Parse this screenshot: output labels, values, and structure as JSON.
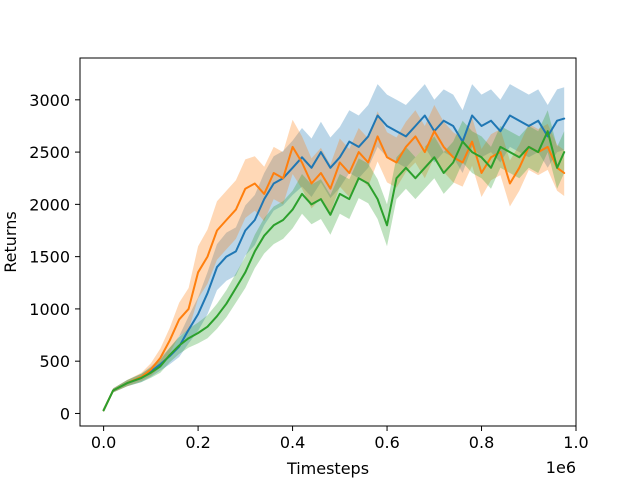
{
  "chart_data": {
    "type": "line",
    "title": "",
    "xlabel": "Timesteps",
    "ylabel": "Returns",
    "x_offset_label": "1e6",
    "xlim": [
      -0.05,
      1.0
    ],
    "ylim": [
      -120,
      3400
    ],
    "xticks": [
      0.0,
      0.2,
      0.4,
      0.6,
      0.8,
      1.0
    ],
    "xtick_labels": [
      "0.0",
      "0.2",
      "0.4",
      "0.6",
      "0.8",
      "1.0"
    ],
    "yticks": [
      0,
      500,
      1000,
      1500,
      2000,
      2500,
      3000
    ],
    "ytick_labels": [
      "0",
      "500",
      "1000",
      "1500",
      "2000",
      "2500",
      "3000"
    ],
    "grid": false,
    "legend": "none",
    "band": "shaded spread around each series",
    "series": [
      {
        "color": "#1f77b4",
        "x": [
          0,
          0.02,
          0.05,
          0.08,
          0.1,
          0.12,
          0.14,
          0.16,
          0.18,
          0.2,
          0.22,
          0.24,
          0.26,
          0.28,
          0.3,
          0.32,
          0.34,
          0.36,
          0.38,
          0.4,
          0.42,
          0.44,
          0.46,
          0.48,
          0.5,
          0.52,
          0.54,
          0.56,
          0.58,
          0.6,
          0.62,
          0.64,
          0.66,
          0.68,
          0.7,
          0.72,
          0.74,
          0.76,
          0.78,
          0.8,
          0.82,
          0.84,
          0.86,
          0.88,
          0.9,
          0.92,
          0.94,
          0.96,
          0.975
        ],
        "y": [
          30,
          220,
          290,
          340,
          400,
          470,
          550,
          640,
          800,
          950,
          1150,
          1400,
          1500,
          1550,
          1750,
          1850,
          2050,
          2200,
          2250,
          2350,
          2450,
          2350,
          2500,
          2350,
          2450,
          2600,
          2550,
          2650,
          2850,
          2750,
          2700,
          2650,
          2750,
          2850,
          2700,
          2800,
          2750,
          2600,
          2850,
          2750,
          2800,
          2700,
          2850,
          2800,
          2750,
          2800,
          2650,
          2800,
          2820
        ],
        "spread": [
          0,
          20,
          30,
          40,
          50,
          60,
          80,
          100,
          130,
          160,
          200,
          220,
          230,
          230,
          240,
          240,
          250,
          260,
          260,
          260,
          280,
          280,
          290,
          290,
          290,
          300,
          300,
          300,
          300,
          300,
          300,
          300,
          300,
          300,
          300,
          300,
          300,
          300,
          300,
          300,
          300,
          300,
          300,
          300,
          300,
          300,
          300,
          300,
          300
        ]
      },
      {
        "color": "#ff7f0e",
        "x": [
          0,
          0.02,
          0.05,
          0.08,
          0.1,
          0.12,
          0.14,
          0.16,
          0.18,
          0.2,
          0.22,
          0.24,
          0.26,
          0.28,
          0.3,
          0.32,
          0.34,
          0.36,
          0.38,
          0.4,
          0.42,
          0.44,
          0.46,
          0.48,
          0.5,
          0.52,
          0.54,
          0.56,
          0.58,
          0.6,
          0.62,
          0.64,
          0.66,
          0.68,
          0.7,
          0.72,
          0.74,
          0.76,
          0.78,
          0.8,
          0.82,
          0.84,
          0.86,
          0.88,
          0.9,
          0.92,
          0.94,
          0.96,
          0.975
        ],
        "y": [
          30,
          220,
          290,
          350,
          420,
          530,
          700,
          900,
          1000,
          1350,
          1500,
          1750,
          1850,
          1950,
          2150,
          2200,
          2100,
          2300,
          2250,
          2550,
          2400,
          2200,
          2300,
          2150,
          2400,
          2300,
          2500,
          2400,
          2650,
          2450,
          2400,
          2550,
          2650,
          2500,
          2700,
          2550,
          2450,
          2400,
          2600,
          2300,
          2450,
          2500,
          2200,
          2350,
          2550,
          2500,
          2550,
          2350,
          2300
        ],
        "spread": [
          0,
          20,
          30,
          40,
          60,
          90,
          120,
          160,
          200,
          250,
          260,
          280,
          280,
          280,
          280,
          260,
          260,
          250,
          250,
          260,
          250,
          240,
          240,
          230,
          230,
          230,
          230,
          230,
          240,
          240,
          240,
          240,
          250,
          250,
          250,
          240,
          240,
          230,
          230,
          230,
          220,
          220,
          220,
          220,
          220,
          220,
          220,
          220,
          220
        ]
      },
      {
        "color": "#2ca02c",
        "x": [
          0,
          0.02,
          0.05,
          0.08,
          0.1,
          0.12,
          0.14,
          0.16,
          0.18,
          0.2,
          0.22,
          0.24,
          0.26,
          0.28,
          0.3,
          0.32,
          0.34,
          0.36,
          0.38,
          0.4,
          0.42,
          0.44,
          0.46,
          0.48,
          0.5,
          0.52,
          0.54,
          0.56,
          0.58,
          0.6,
          0.62,
          0.64,
          0.66,
          0.68,
          0.7,
          0.72,
          0.74,
          0.76,
          0.78,
          0.8,
          0.82,
          0.84,
          0.86,
          0.88,
          0.9,
          0.92,
          0.94,
          0.96,
          0.975
        ],
        "y": [
          30,
          220,
          290,
          340,
          390,
          450,
          560,
          650,
          720,
          770,
          830,
          930,
          1050,
          1200,
          1350,
          1550,
          1700,
          1800,
          1850,
          1950,
          2100,
          2000,
          2050,
          1900,
          2100,
          2050,
          2250,
          2200,
          2050,
          1800,
          2250,
          2350,
          2250,
          2350,
          2450,
          2300,
          2400,
          2600,
          2500,
          2450,
          2350,
          2550,
          2500,
          2450,
          2550,
          2500,
          2700,
          2350,
          2500
        ],
        "spread": [
          0,
          20,
          30,
          40,
          50,
          60,
          70,
          80,
          90,
          100,
          110,
          120,
          130,
          140,
          150,
          160,
          170,
          180,
          180,
          180,
          190,
          190,
          190,
          190,
          190,
          190,
          190,
          190,
          190,
          200,
          200,
          200,
          200,
          200,
          200,
          200,
          200,
          200,
          200,
          200,
          200,
          200,
          200,
          200,
          200,
          200,
          200,
          200,
          200
        ]
      }
    ]
  }
}
